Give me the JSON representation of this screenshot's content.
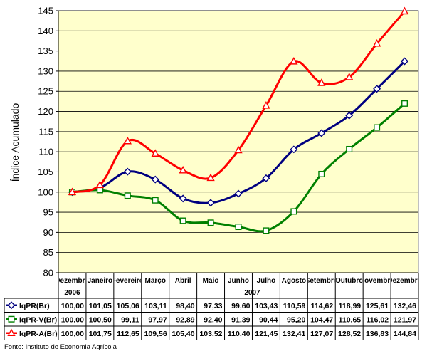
{
  "chart_data": {
    "type": "line",
    "ylabel": "Índice Acumulado",
    "ylim": [
      80,
      145
    ],
    "yticks": [
      80,
      85,
      90,
      95,
      100,
      105,
      110,
      115,
      120,
      125,
      130,
      135,
      140,
      145
    ],
    "categories": [
      "Dezembro",
      "Janeiro",
      "Fevereiro",
      "Março",
      "Abril",
      "Maio",
      "Junho",
      "Julho",
      "Agosto",
      "Setembro",
      "Outubro",
      "Novembro",
      "Dezembro"
    ],
    "year_labels": [
      {
        "label": "2006",
        "from": 0,
        "to": 0
      },
      {
        "label": "2007",
        "from": 1,
        "to": 12
      }
    ],
    "series": [
      {
        "name": "IqPR(Br)",
        "color": "#000080",
        "marker": "diamond",
        "values": [
          100.0,
          101.05,
          105.06,
          103.11,
          98.4,
          97.33,
          99.6,
          103.43,
          110.59,
          114.62,
          118.99,
          125.61,
          132.46
        ],
        "labels": [
          "100,00",
          "101,05",
          "105,06",
          "103,11",
          "98,40",
          "97,33",
          "99,60",
          "103,43",
          "110,59",
          "114,62",
          "118,99",
          "125,61",
          "132,46"
        ]
      },
      {
        "name": "IqPR-V(Br)",
        "color": "#008000",
        "marker": "square",
        "values": [
          100.0,
          100.5,
          99.11,
          97.97,
          92.89,
          92.4,
          91.39,
          90.44,
          95.2,
          104.47,
          110.65,
          116.02,
          121.97
        ],
        "labels": [
          "100,00",
          "100,50",
          "99,11",
          "97,97",
          "92,89",
          "92,40",
          "91,39",
          "90,44",
          "95,20",
          "104,47",
          "110,65",
          "116,02",
          "121,97"
        ]
      },
      {
        "name": "IqPR-A(Br)",
        "color": "#ff0000",
        "marker": "triangle",
        "values": [
          100.0,
          101.75,
          112.65,
          109.56,
          105.4,
          103.52,
          110.4,
          121.45,
          132.41,
          127.07,
          128.52,
          136.83,
          144.84
        ],
        "labels": [
          "100,00",
          "101,75",
          "112,65",
          "109,56",
          "105,40",
          "103,52",
          "110,40",
          "121,45",
          "132,41",
          "127,07",
          "128,52",
          "136,83",
          "144,84"
        ]
      }
    ],
    "plot_background": "#ffffcc",
    "grid": true,
    "legend": "data-table-left"
  },
  "source": "Fonte: Instituto de Economia Agrícola"
}
